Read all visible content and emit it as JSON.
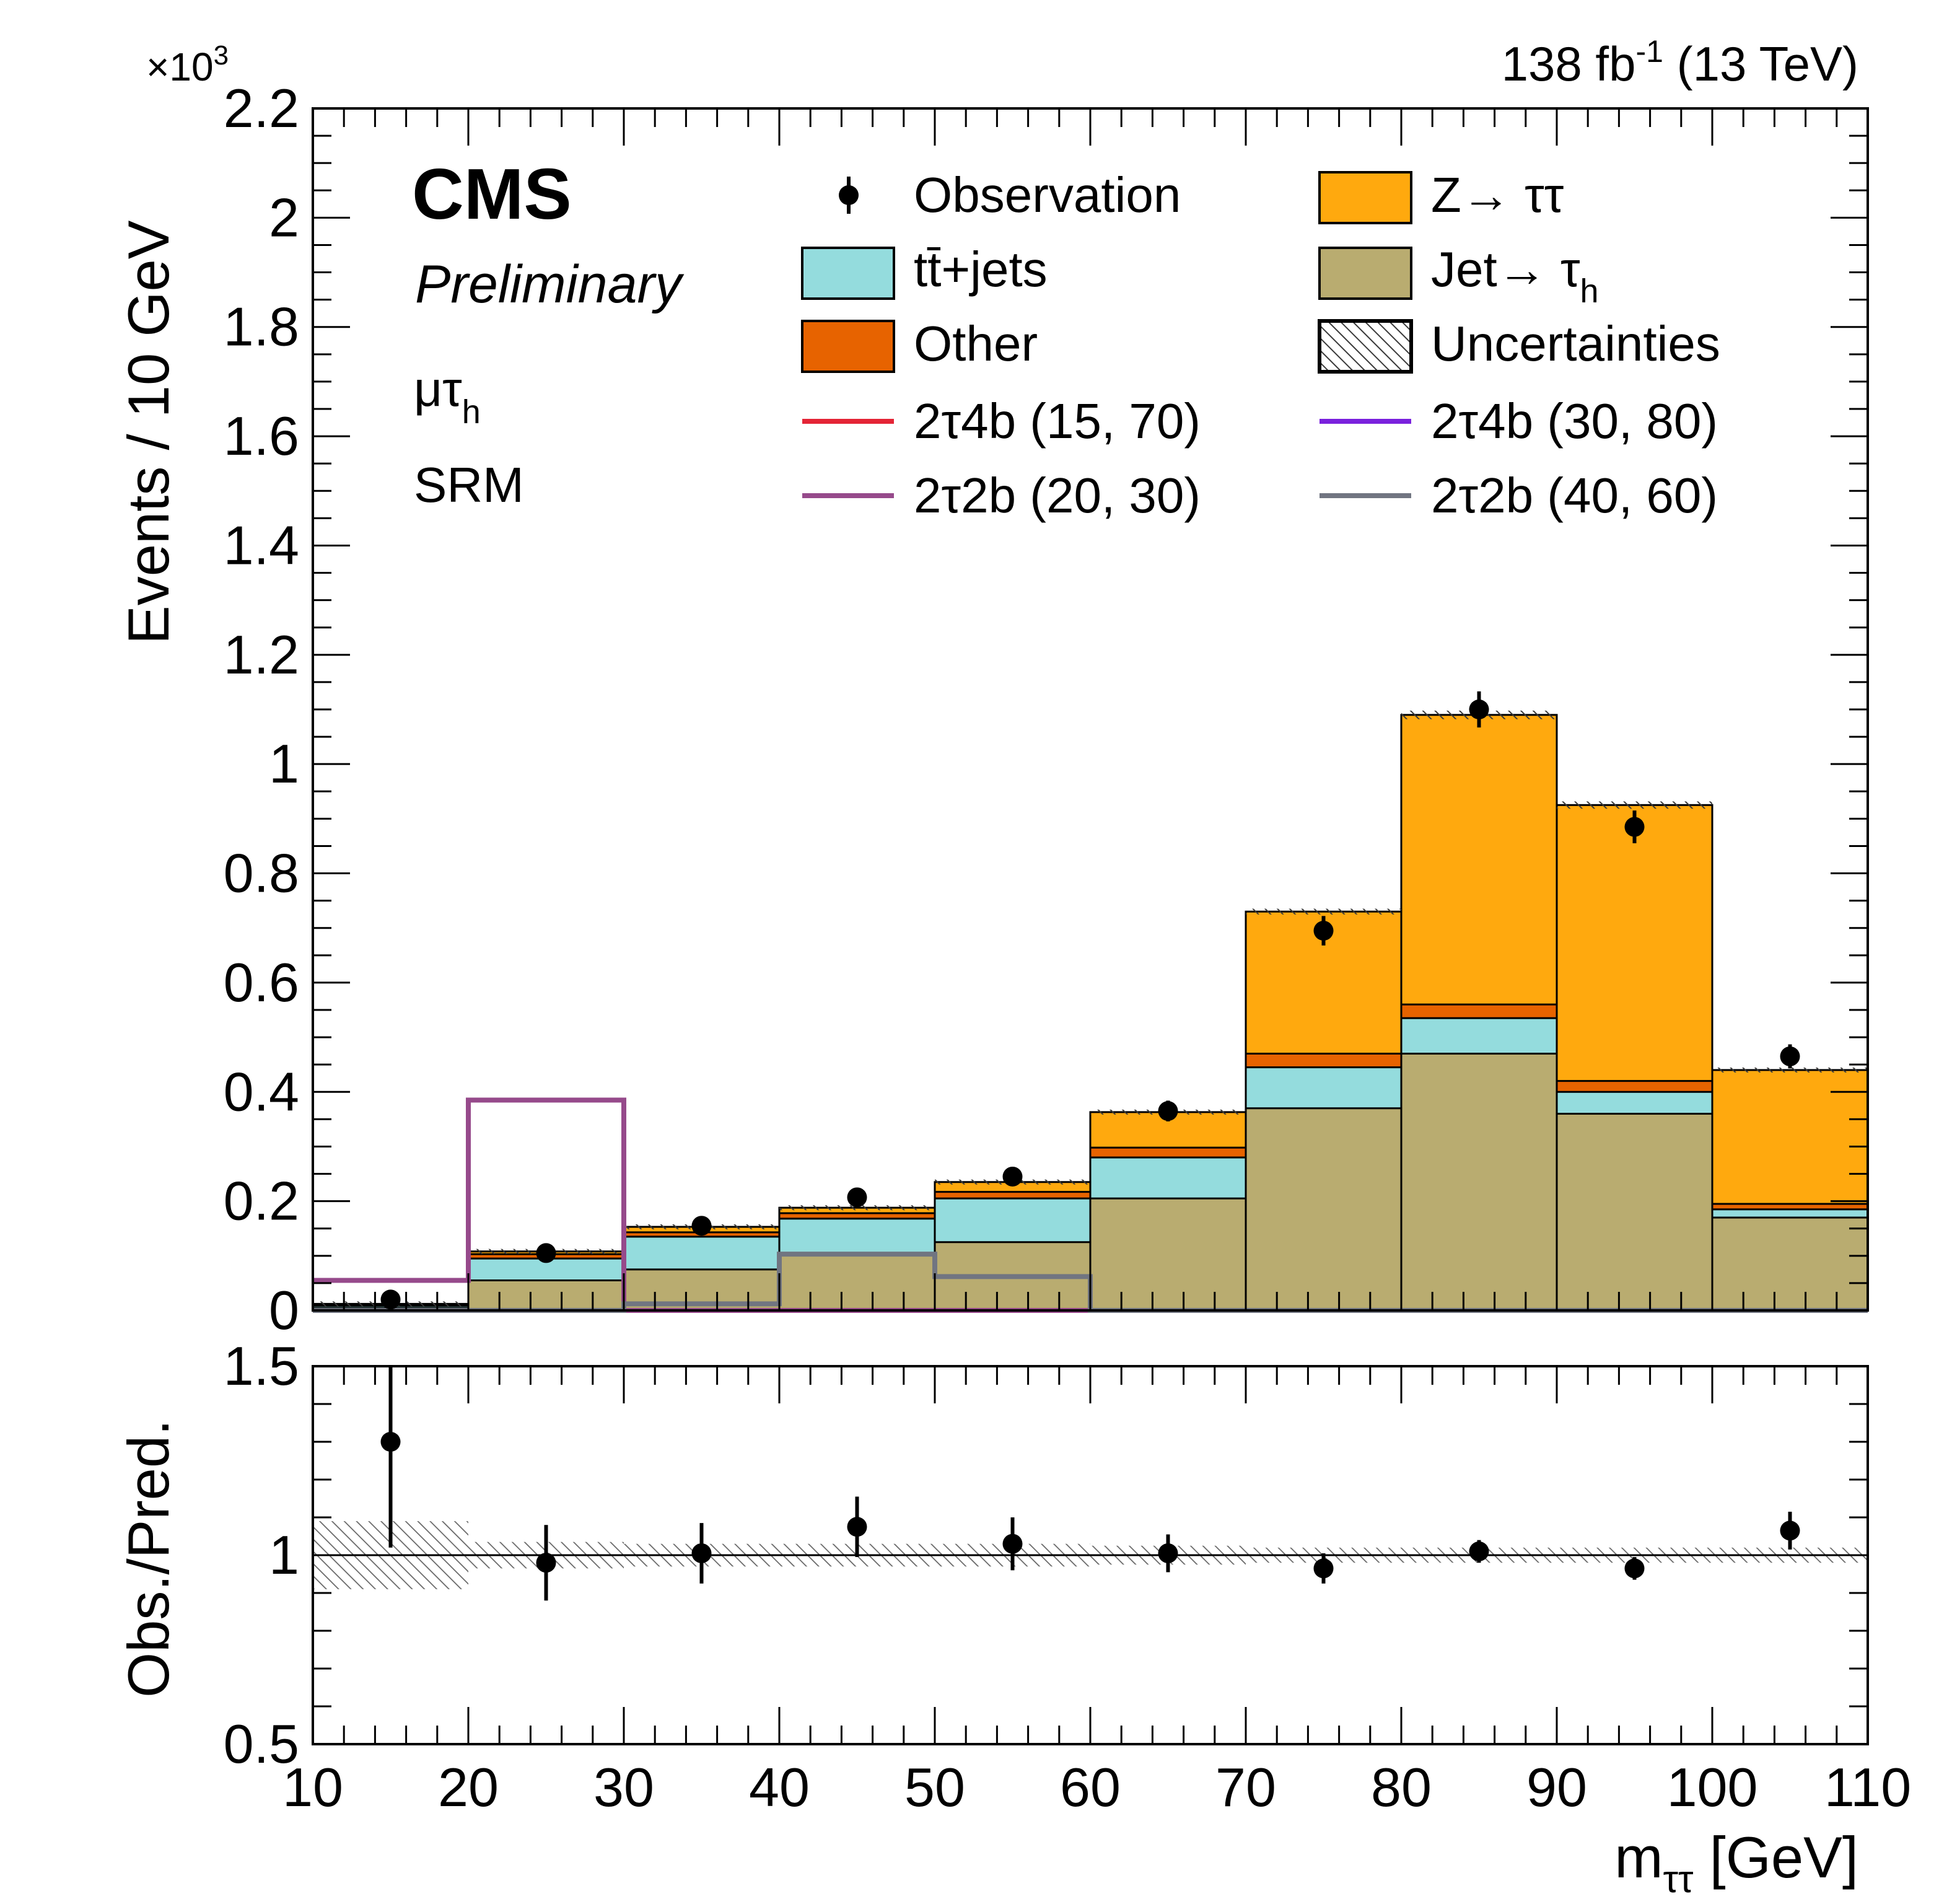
{
  "chart_data": {
    "type": "bar",
    "stacked": true,
    "title_left": "CMS",
    "subtitle": "Preliminary",
    "channel": "μτ",
    "channel_sub": "h",
    "region": "SRM",
    "lumi_text": "138 fb",
    "lumi_sup": "-1",
    "lumi_energy": " (13 TeV)",
    "y_multiplier": "×10",
    "y_multiplier_exp": "3",
    "ylabel": "Events / 10 GeV",
    "xlabel_main": "m",
    "xlabel_sub": "ττ",
    "xlabel_unit": " [GeV]",
    "ratio_ylabel": "Obs./Pred.",
    "xlim": [
      10,
      110
    ],
    "ylim": [
      0,
      2.2
    ],
    "ratio_ylim": [
      0.5,
      1.5
    ],
    "x_ticks": [
      "10",
      "20",
      "30",
      "40",
      "50",
      "60",
      "70",
      "80",
      "90",
      "100",
      "110"
    ],
    "y_ticks": [
      "0",
      "0.2",
      "0.4",
      "0.6",
      "0.8",
      "1",
      "1.2",
      "1.4",
      "1.6",
      "1.8",
      "2",
      "2.2"
    ],
    "ratio_ticks": [
      "0.5",
      "1",
      "1.5"
    ],
    "bin_edges": [
      10,
      20,
      30,
      40,
      50,
      60,
      70,
      80,
      90,
      100,
      110
    ],
    "stack": [
      {
        "name": "Jet→ τ",
        "sub": "h",
        "color": "#b9ac70",
        "values": [
          0.004,
          0.055,
          0.075,
          0.103,
          0.125,
          0.205,
          0.37,
          0.47,
          0.36,
          0.17
        ]
      },
      {
        "name": "tt̄+jets",
        "sub": "",
        "color": "#94dcdd",
        "values": [
          0.004,
          0.04,
          0.06,
          0.065,
          0.08,
          0.075,
          0.075,
          0.065,
          0.04,
          0.015
        ]
      },
      {
        "name": "Other",
        "sub": "",
        "color": "#e76300",
        "values": [
          0.002,
          0.008,
          0.008,
          0.01,
          0.012,
          0.018,
          0.025,
          0.025,
          0.02,
          0.01
        ]
      },
      {
        "name": "Z→ ττ",
        "sub": "",
        "color": "#ffa90e",
        "values": [
          0.002,
          0.005,
          0.01,
          0.01,
          0.018,
          0.065,
          0.26,
          0.53,
          0.505,
          0.245
        ]
      }
    ],
    "observation": {
      "name": "Observation",
      "x": [
        15,
        25,
        35,
        45,
        55,
        65,
        75,
        85,
        95,
        105
      ],
      "values": [
        0.02,
        0.105,
        0.155,
        0.207,
        0.245,
        0.365,
        0.695,
        1.1,
        0.885,
        0.465
      ],
      "errors": [
        0.006,
        0.011,
        0.013,
        0.015,
        0.016,
        0.019,
        0.027,
        0.033,
        0.03,
        0.022
      ]
    },
    "uncertainties": {
      "name": "Uncertainties"
    },
    "signals": [
      {
        "name": "2τ4b (15, 70)",
        "color": "#e42536",
        "values": [
          0,
          0,
          0,
          0,
          0,
          0,
          0,
          0,
          0,
          0
        ]
      },
      {
        "name": "2τ4b (30, 80)",
        "color": "#7a21dd",
        "values": [
          0,
          0,
          0,
          0,
          0,
          0,
          0,
          0,
          0,
          0
        ]
      },
      {
        "name": "2τ2b (20, 30)",
        "color": "#964a8b",
        "values": [
          0.055,
          0.385,
          0,
          0,
          0,
          0,
          0,
          0,
          0,
          0
        ]
      },
      {
        "name": "2τ2b (40, 60)",
        "color": "#717581",
        "values": [
          0,
          0,
          0.012,
          0.103,
          0.062,
          0,
          0,
          0,
          0,
          0
        ]
      }
    ],
    "ratio": {
      "x": [
        15,
        25,
        35,
        45,
        55,
        65,
        75,
        85,
        95,
        105
      ],
      "values": [
        1.3,
        0.98,
        1.005,
        1.075,
        1.03,
        1.005,
        0.965,
        1.01,
        0.965,
        1.065
      ],
      "errors": [
        0.28,
        0.1,
        0.08,
        0.08,
        0.07,
        0.05,
        0.04,
        0.03,
        0.03,
        0.05
      ],
      "band": [
        0.09,
        0.035,
        0.03,
        0.03,
        0.03,
        0.025,
        0.02,
        0.02,
        0.02,
        0.02
      ]
    },
    "legend_position": "top-right"
  }
}
